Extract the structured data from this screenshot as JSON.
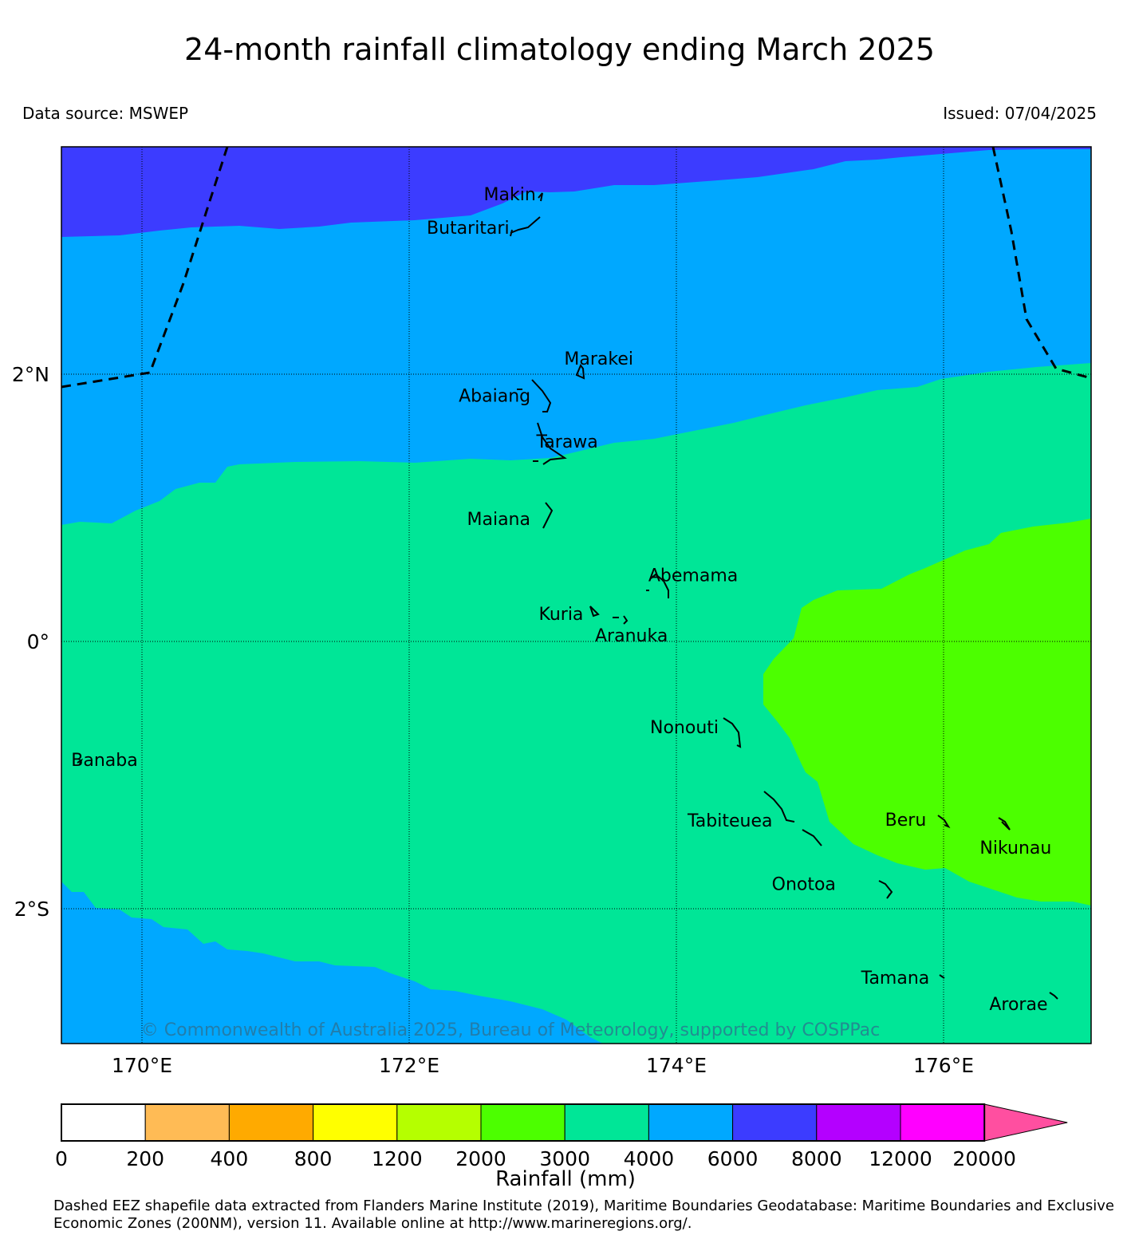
{
  "header": {
    "title": "24-month rainfall climatology ending March 2025",
    "source": "Data source: MSWEP",
    "issued": "Issued: 07/04/2025"
  },
  "map": {
    "lon_range": [
      169.4,
      177.1
    ],
    "lat_range": [
      -3.0,
      3.7
    ],
    "lat_ticks": [
      {
        "value": 2,
        "label": "2°N"
      },
      {
        "value": 0,
        "label": "0°"
      },
      {
        "value": -2,
        "label": "2°S"
      }
    ],
    "lon_ticks": [
      {
        "value": 170,
        "label": "170°E"
      },
      {
        "value": 172,
        "label": "172°E"
      },
      {
        "value": 174,
        "label": "174°E"
      },
      {
        "value": 176,
        "label": "176°E"
      }
    ],
    "grid": "dotted",
    "islands": [
      {
        "name": "Makin",
        "lon": 173.0,
        "lat": 3.35
      },
      {
        "name": "Butaritari",
        "lon": 172.8,
        "lat": 3.1
      },
      {
        "name": "Marakei",
        "lon": 173.28,
        "lat": 2.0
      },
      {
        "name": "Abaiang",
        "lon": 172.95,
        "lat": 1.83
      },
      {
        "name": "Tarawa",
        "lon": 173.0,
        "lat": 1.45
      },
      {
        "name": "Maiana",
        "lon": 173.0,
        "lat": 0.92
      },
      {
        "name": "Abemama",
        "lon": 173.85,
        "lat": 0.45
      },
      {
        "name": "Kuria",
        "lon": 173.4,
        "lat": 0.22
      },
      {
        "name": "Aranuka",
        "lon": 173.6,
        "lat": 0.18
      },
      {
        "name": "Nonouti",
        "lon": 174.43,
        "lat": -0.64
      },
      {
        "name": "Banaba",
        "lon": 169.53,
        "lat": -0.86
      },
      {
        "name": "Tabiteuea",
        "lon": 174.8,
        "lat": -1.35
      },
      {
        "name": "Beru",
        "lon": 175.98,
        "lat": -1.33
      },
      {
        "name": "Nikunau",
        "lon": 176.45,
        "lat": -1.35
      },
      {
        "name": "Onotoa",
        "lon": 175.55,
        "lat": -1.8
      },
      {
        "name": "Tamana",
        "lon": 175.98,
        "lat": -2.5
      },
      {
        "name": "Arorae",
        "lon": 176.82,
        "lat": -2.64
      }
    ],
    "copyright": "© Commonwealth of Australia 2025, Bureau of Meteorology, supported by COSPPac"
  },
  "legend": {
    "label": "Rainfall (mm)",
    "tick_labels": [
      "0",
      "200",
      "400",
      "800",
      "1200",
      "2000",
      "3000",
      "4000",
      "6000",
      "8000",
      "12000",
      "20000"
    ],
    "colors": [
      "#ffffff",
      "#ffbb55",
      "#ffaa00",
      "#ffff00",
      "#b5ff00",
      "#4cff00",
      "#00e697",
      "#00a8ff",
      "#3c3cff",
      "#b400ff",
      "#ff00ff",
      "#ff4fa0"
    ]
  },
  "chart_data": {
    "type": "heatmap",
    "title": "24-month rainfall climatology ending March 2025",
    "variable": "Rainfall (mm)",
    "bins_mm": [
      0,
      200,
      400,
      800,
      1200,
      2000,
      3000,
      4000,
      6000,
      8000,
      12000,
      20000
    ],
    "regions_present": [
      {
        "range_mm": "6000-8000",
        "area": "north of about 3.3°N",
        "color": "#3c3cff"
      },
      {
        "range_mm": "4000-6000",
        "area": "about 1.3°N to 3.3°N and south of about 2°S in the west",
        "color": "#00a8ff"
      },
      {
        "range_mm": "3000-4000",
        "area": "central band from about 2°N to 3°S",
        "color": "#00e697"
      },
      {
        "range_mm": "2000-3000",
        "area": "east of about 174.7°E between 0.9°N and 2°S",
        "color": "#4cff00"
      }
    ]
  },
  "footer": {
    "note": "Dashed EEZ shapefile data extracted from Flanders Marine Institute (2019), Maritime Boundaries Geodatabase: Maritime Boundaries and Exclusive Economic Zones (200NM), version 11. Available online at http://www.marineregions.org/."
  }
}
